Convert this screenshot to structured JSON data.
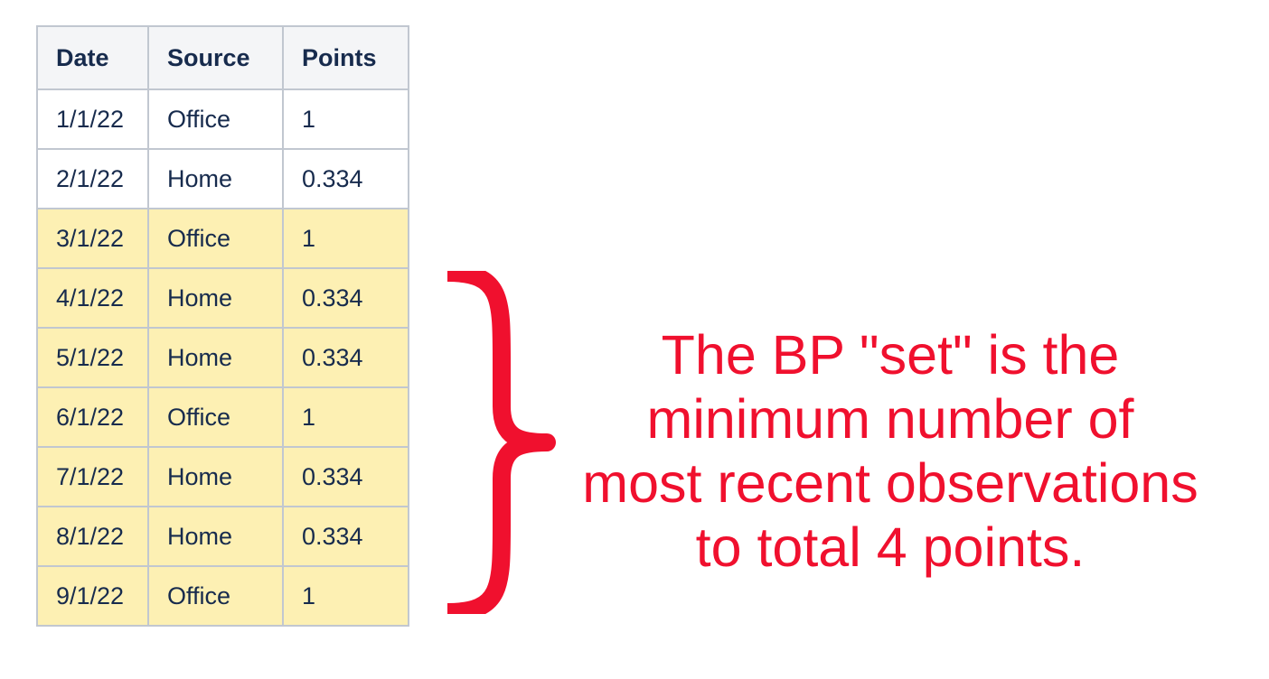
{
  "table": {
    "headers": [
      "Date",
      "Source",
      "Points"
    ],
    "rows": [
      {
        "date": "1/1/22",
        "source": "Office",
        "points": "1",
        "highlighted": false
      },
      {
        "date": "2/1/22",
        "source": "Home",
        "points": "0.334",
        "highlighted": false
      },
      {
        "date": "3/1/22",
        "source": "Office",
        "points": "1",
        "highlighted": true
      },
      {
        "date": "4/1/22",
        "source": "Home",
        "points": "0.334",
        "highlighted": true
      },
      {
        "date": "5/1/22",
        "source": "Home",
        "points": "0.334",
        "highlighted": true
      },
      {
        "date": "6/1/22",
        "source": "Office",
        "points": "1",
        "highlighted": true
      },
      {
        "date": "7/1/22",
        "source": "Home",
        "points": "0.334",
        "highlighted": true
      },
      {
        "date": "8/1/22",
        "source": "Home",
        "points": "0.334",
        "highlighted": true
      },
      {
        "date": "9/1/22",
        "source": "Office",
        "points": "1",
        "highlighted": true
      }
    ]
  },
  "annotation": {
    "lines": [
      "The BP \"set\" is the",
      "minimum number of",
      "most recent observations",
      "to total 4 points."
    ]
  },
  "colors": {
    "annotation": "#f0102e",
    "highlight_row": "#fdf0b3",
    "header_bg": "#f4f5f7",
    "table_text": "#172b4d",
    "border": "#c1c7d0"
  }
}
